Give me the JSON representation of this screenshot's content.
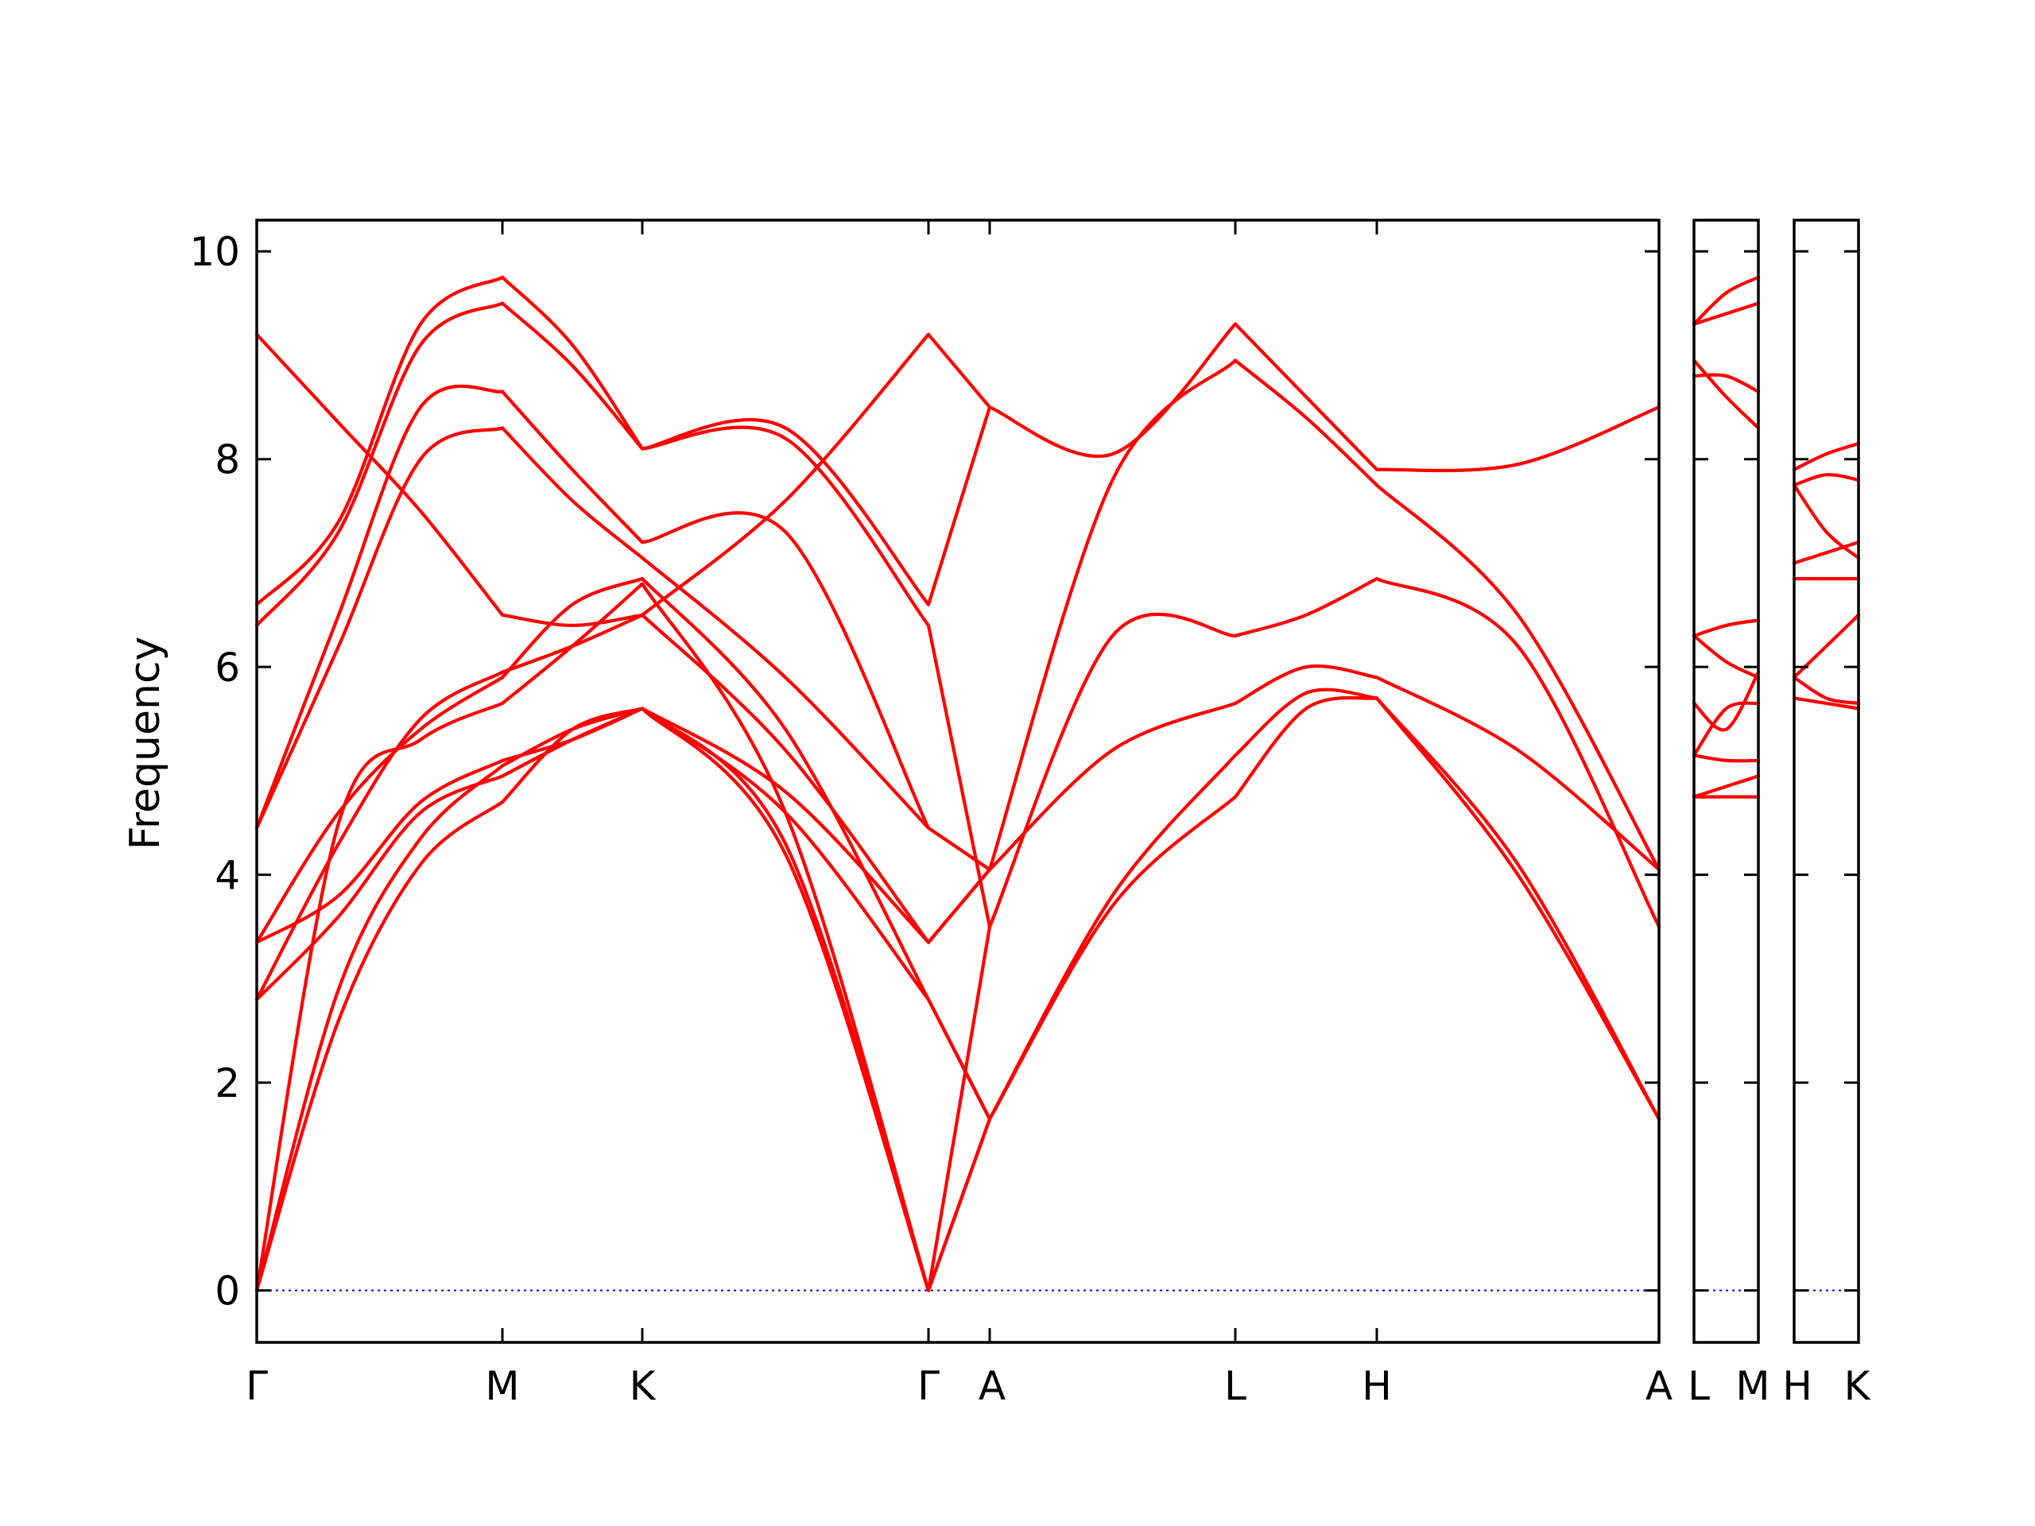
{
  "chart_data": {
    "type": "line",
    "xlabel": "",
    "ylabel": "Frequency",
    "ylim": [
      -0.5,
      10.3
    ],
    "yticks": [
      0,
      2,
      4,
      6,
      8,
      10
    ],
    "zero_line_color": "#0000ff",
    "band_color": "#ff0000",
    "panels": [
      {
        "labels": [
          "Γ",
          "M",
          "K",
          "Γ",
          "A",
          "L",
          "H",
          "A"
        ],
        "segments": [
          {
            "from": "Γ",
            "to": "M",
            "bands": [
              [
                0,
                2.6,
                4.1,
                4.7
              ],
              [
                0,
                2.9,
                4.35,
                5.05
              ],
              [
                2.8,
                3.6,
                4.6,
                4.95
              ],
              [
                3.35,
                3.8,
                4.7,
                5.1
              ],
              [
                0,
                4.5,
                5.3,
                5.65
              ],
              [
                3.35,
                4.6,
                5.4,
                5.9
              ],
              [
                2.8,
                4.3,
                5.5,
                5.95
              ],
              [
                4.45,
                6.2,
                8.0,
                8.3
              ],
              [
                4.45,
                6.5,
                8.5,
                8.65
              ],
              [
                6.4,
                7.3,
                9.1,
                9.5
              ],
              [
                6.6,
                7.4,
                9.3,
                9.75
              ],
              [
                9.2,
                8.35,
                7.5,
                6.5
              ]
            ]
          },
          {
            "from": "M",
            "to": "K",
            "bands": [
              [
                4.7,
                5.4,
                5.6
              ],
              [
                5.05,
                5.4,
                5.6
              ],
              [
                4.95,
                5.3,
                5.6
              ],
              [
                5.1,
                5.3,
                5.6
              ],
              [
                5.65,
                6.2,
                6.8
              ],
              [
                5.9,
                6.6,
                6.85
              ],
              [
                5.95,
                6.2,
                6.5
              ],
              [
                8.3,
                7.6,
                7.05
              ],
              [
                8.65,
                7.9,
                7.2
              ],
              [
                9.5,
                8.9,
                8.1
              ],
              [
                9.75,
                9.1,
                8.1
              ],
              [
                6.5,
                6.4,
                6.5
              ]
            ]
          },
          {
            "from": "K",
            "to": "Γ",
            "bands": [
              [
                5.6,
                4.2,
                0
              ],
              [
                5.6,
                4.3,
                0
              ],
              [
                5.6,
                4.6,
                2.8
              ],
              [
                5.6,
                4.8,
                3.35
              ],
              [
                6.8,
                4.6,
                0
              ],
              [
                6.85,
                5.4,
                2.8
              ],
              [
                6.5,
                5.2,
                3.35
              ],
              [
                7.05,
                5.9,
                4.45
              ],
              [
                7.2,
                7.3,
                4.45
              ],
              [
                8.1,
                8.2,
                6.4
              ],
              [
                8.1,
                8.3,
                6.6
              ],
              [
                6.5,
                7.6,
                9.2
              ]
            ]
          },
          {
            "from": "Γ",
            "to": "A",
            "bands": [
              [
                0,
                1.65
              ],
              [
                0,
                1.65
              ],
              [
                2.8,
                1.65
              ],
              [
                3.35,
                4.05
              ],
              [
                0,
                3.5
              ],
              [
                2.8,
                1.65
              ],
              [
                3.35,
                4.05
              ],
              [
                4.45,
                4.05
              ],
              [
                4.45,
                4.05
              ],
              [
                6.4,
                3.5
              ],
              [
                6.6,
                8.5
              ],
              [
                9.2,
                8.5
              ]
            ]
          },
          {
            "from": "A",
            "to": "L",
            "bands": [
              [
                1.65,
                3.7,
                4.75
              ],
              [
                1.65,
                3.8,
                5.15
              ],
              [
                4.05,
                5.2,
                5.65
              ],
              [
                3.5,
                6.3,
                6.3
              ],
              [
                8.5,
                8.05,
                9.3
              ],
              [
                4.05,
                7.8,
                8.95
              ]
            ]
          },
          {
            "from": "L",
            "to": "H",
            "bands": [
              [
                4.75,
                5.6,
                5.7
              ],
              [
                5.15,
                5.75,
                5.7
              ],
              [
                5.65,
                6.0,
                5.9
              ],
              [
                6.3,
                6.5,
                6.85
              ],
              [
                9.3,
                8.6,
                7.9
              ],
              [
                8.95,
                8.4,
                7.75
              ]
            ]
          },
          {
            "from": "H",
            "to": "A",
            "bands": [
              [
                5.7,
                4.0,
                1.65
              ],
              [
                5.7,
                4.1,
                1.65
              ],
              [
                5.9,
                5.2,
                4.05
              ],
              [
                6.85,
                6.2,
                3.5
              ],
              [
                7.9,
                7.95,
                8.5
              ],
              [
                7.75,
                6.5,
                4.05
              ]
            ]
          }
        ]
      },
      {
        "labels": [
          "L",
          "M"
        ],
        "segments": [
          {
            "from": "L",
            "to": "M",
            "bands": [
              [
                4.75,
                4.75,
                4.75
              ],
              [
                4.75,
                4.85,
                4.95
              ],
              [
                5.15,
                5.1,
                5.1
              ],
              [
                5.15,
                5.6,
                5.65
              ],
              [
                5.65,
                5.4,
                5.95
              ],
              [
                6.3,
                6.05,
                5.9
              ],
              [
                6.3,
                6.4,
                6.45
              ],
              [
                8.95,
                8.6,
                8.3
              ],
              [
                8.8,
                8.8,
                8.65
              ],
              [
                9.3,
                9.4,
                9.5
              ],
              [
                9.3,
                9.6,
                9.75
              ]
            ]
          }
        ]
      },
      {
        "labels": [
          "H",
          "K"
        ],
        "segments": [
          {
            "from": "H",
            "to": "K",
            "bands": [
              [
                5.7,
                5.65,
                5.6
              ],
              [
                5.9,
                5.7,
                5.65
              ],
              [
                5.9,
                6.2,
                6.5
              ],
              [
                6.85,
                6.85,
                6.85
              ],
              [
                7.0,
                7.1,
                7.2
              ],
              [
                7.75,
                7.3,
                7.05
              ],
              [
                7.75,
                7.85,
                7.8
              ],
              [
                7.9,
                8.05,
                8.15
              ]
            ]
          }
        ]
      }
    ]
  }
}
